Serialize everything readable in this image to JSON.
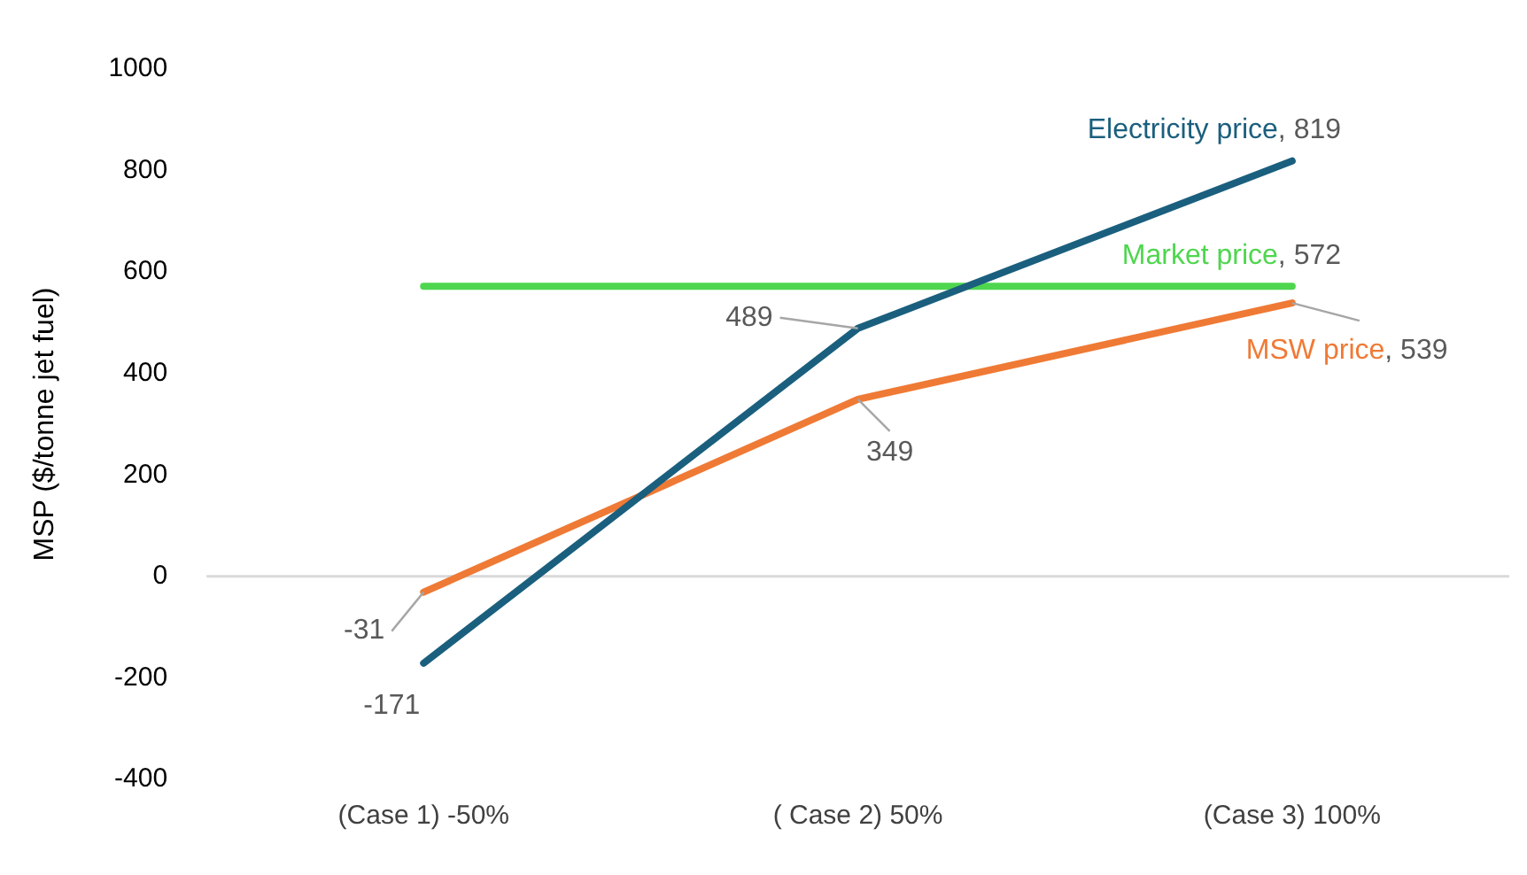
{
  "chart_data": {
    "type": "line",
    "ylabel": "MSP ($/tonne jet fuel)",
    "categories": [
      "(Case 1) -50%",
      "( Case 2) 50%",
      "(Case 3) 100%"
    ],
    "series": [
      {
        "name": "Electricity price",
        "color": "#1b5f7e",
        "values": [
          -171,
          489,
          819
        ],
        "value_labels": [
          "-171",
          "489",
          ", 819"
        ]
      },
      {
        "name": "MSW price",
        "color": "#ef7a35",
        "values": [
          -31,
          349,
          539
        ],
        "value_labels": [
          "-31",
          "349",
          ", 539"
        ]
      },
      {
        "name": "Market price",
        "color": "#4fd64f",
        "values": [
          572,
          572,
          572
        ],
        "value_labels": [
          null,
          null,
          ", 572"
        ]
      }
    ],
    "ylim": [
      -400,
      1000
    ],
    "yticks": [
      -400,
      -200,
      0,
      200,
      400,
      600,
      800,
      1000
    ],
    "ref_lines": [
      {
        "axis": "y",
        "value": 0,
        "color": "#d9d9d9"
      }
    ],
    "grid": false,
    "legend": false,
    "marker": "none",
    "line_style": "solid"
  }
}
